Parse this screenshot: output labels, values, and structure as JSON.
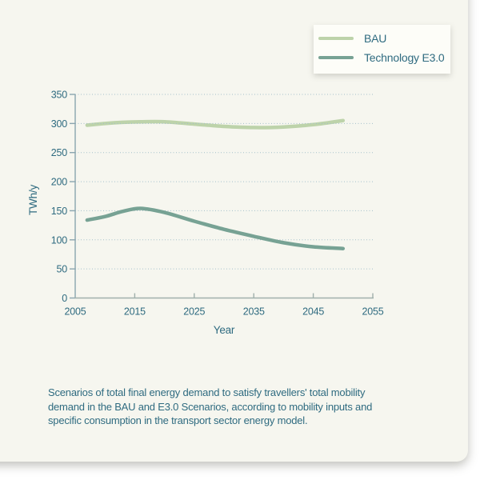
{
  "colors": {
    "page_background": "#ffffff",
    "card_background": "#f6f6ef",
    "legend_background": "#fdfdf8",
    "text_teal": "#2f6b80",
    "bau_line": "#bdd3aa",
    "e30_line": "#77a294",
    "gridline": "#a3bfca",
    "x_axis_line": "#a0b0ab",
    "y_axis_line": "#8aa5af"
  },
  "caption": {
    "lines": [
      "Scenarios of total final energy demand to satisfy travellers' total mobility",
      "demand in the BAU and E3.0 Scenarios, according to mobility inputs and",
      "specific consumption in the transport sector energy model."
    ]
  },
  "chart_data": {
    "type": "line",
    "title": "",
    "xlabel": "Year",
    "ylabel": "TWh/y",
    "xlim": [
      2005,
      2055
    ],
    "ylim": [
      0,
      350
    ],
    "xticks": [
      2005,
      2015,
      2025,
      2035,
      2045,
      2055
    ],
    "yticks": [
      0,
      50,
      100,
      150,
      200,
      250,
      300,
      350
    ],
    "grid": "horizontal dotted lines at each y tick",
    "legend_position": "top-right",
    "x": [
      2007,
      2010,
      2013,
      2016,
      2020,
      2025,
      2030,
      2035,
      2040,
      2045,
      2050
    ],
    "series": [
      {
        "name": "BAU",
        "color": "#bdd3aa",
        "values": [
          297,
          300,
          302,
          303,
          303,
          299,
          295,
          293,
          294,
          298,
          305
        ]
      },
      {
        "name": "Technology E3.0",
        "color": "#77a294",
        "values": [
          134,
          140,
          149,
          154,
          147,
          132,
          118,
          106,
          95,
          88,
          85
        ]
      }
    ]
  }
}
